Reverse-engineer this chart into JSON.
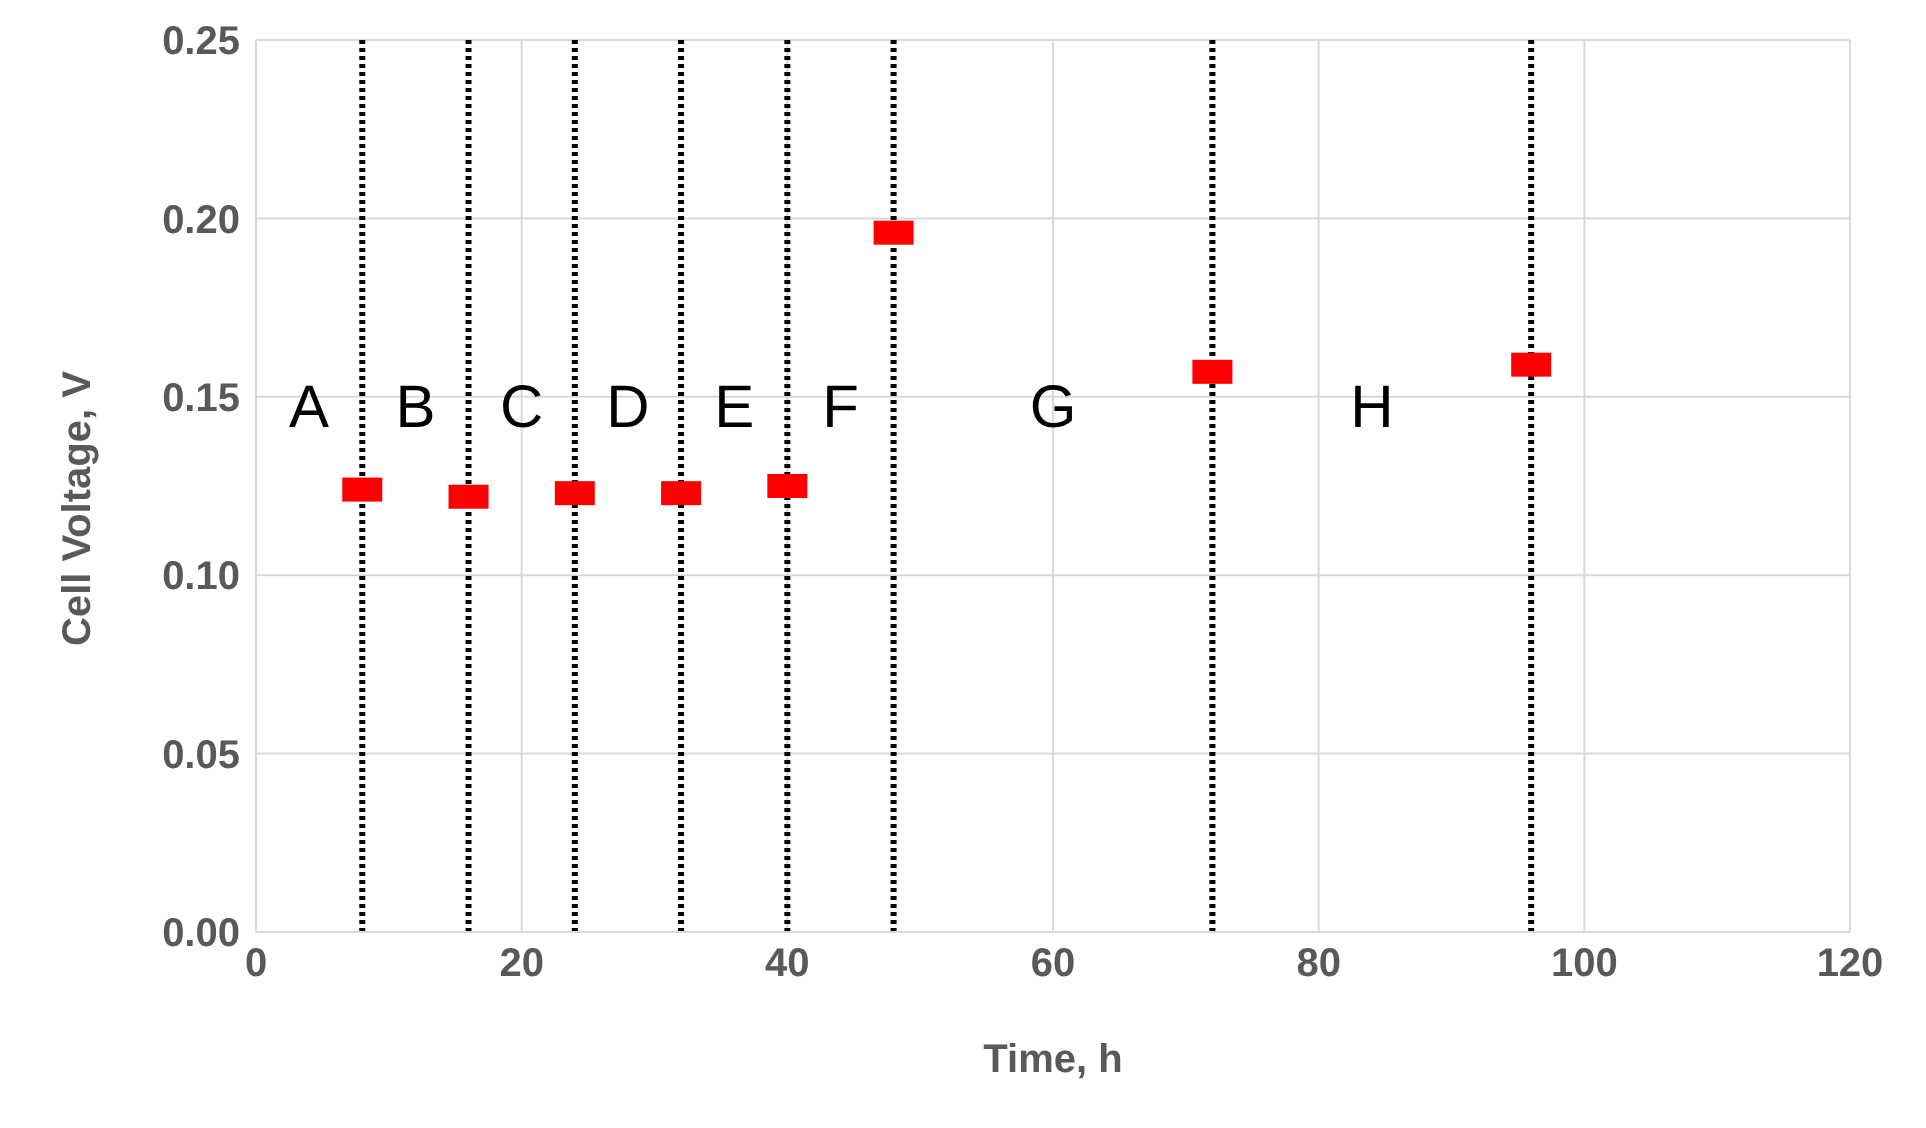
{
  "chart_data": {
    "type": "scatter",
    "xlabel": "Time, h",
    "ylabel": "Cell Voltage, V",
    "x": [
      8,
      16,
      24,
      32,
      40,
      48,
      72,
      96
    ],
    "series": [
      {
        "color": "#ff0000",
        "values": [
          0.124,
          0.122,
          0.123,
          0.123,
          0.125,
          0.196,
          0.157,
          0.159
        ]
      }
    ],
    "marker": "square",
    "grid": true,
    "legend": false,
    "xlim": [
      0,
      120
    ],
    "xticks": [
      0,
      20,
      40,
      60,
      80,
      100,
      120
    ],
    "ylim": [
      0,
      0.25
    ],
    "yticks": [
      {
        "value": 0,
        "label": "0.00"
      },
      {
        "value": 0.05,
        "label": "0.05"
      },
      {
        "value": 0.1,
        "label": "0.10"
      },
      {
        "value": 0.15,
        "label": "0.15"
      },
      {
        "value": 0.2,
        "label": "0.20"
      },
      {
        "value": 0.25,
        "label": "0.25"
      }
    ],
    "ref_lines": [
      {
        "axis": "x",
        "value": 8,
        "color": "#000000",
        "line_style": "dotted"
      },
      {
        "axis": "x",
        "value": 16,
        "color": "#000000",
        "line_style": "dotted"
      },
      {
        "axis": "x",
        "value": 24,
        "color": "#000000",
        "line_style": "dotted"
      },
      {
        "axis": "x",
        "value": 32,
        "color": "#000000",
        "line_style": "dotted"
      },
      {
        "axis": "x",
        "value": 40,
        "color": "#000000",
        "line_style": "dotted"
      },
      {
        "axis": "x",
        "value": 48,
        "color": "#000000",
        "line_style": "dotted"
      },
      {
        "axis": "x",
        "value": 72,
        "color": "#000000",
        "line_style": "dotted"
      },
      {
        "axis": "x",
        "value": 96,
        "color": "#000000",
        "line_style": "dotted"
      }
    ],
    "annotations": [
      "A",
      "B",
      "C",
      "D",
      "E",
      "F",
      "G",
      "H"
    ]
  }
}
